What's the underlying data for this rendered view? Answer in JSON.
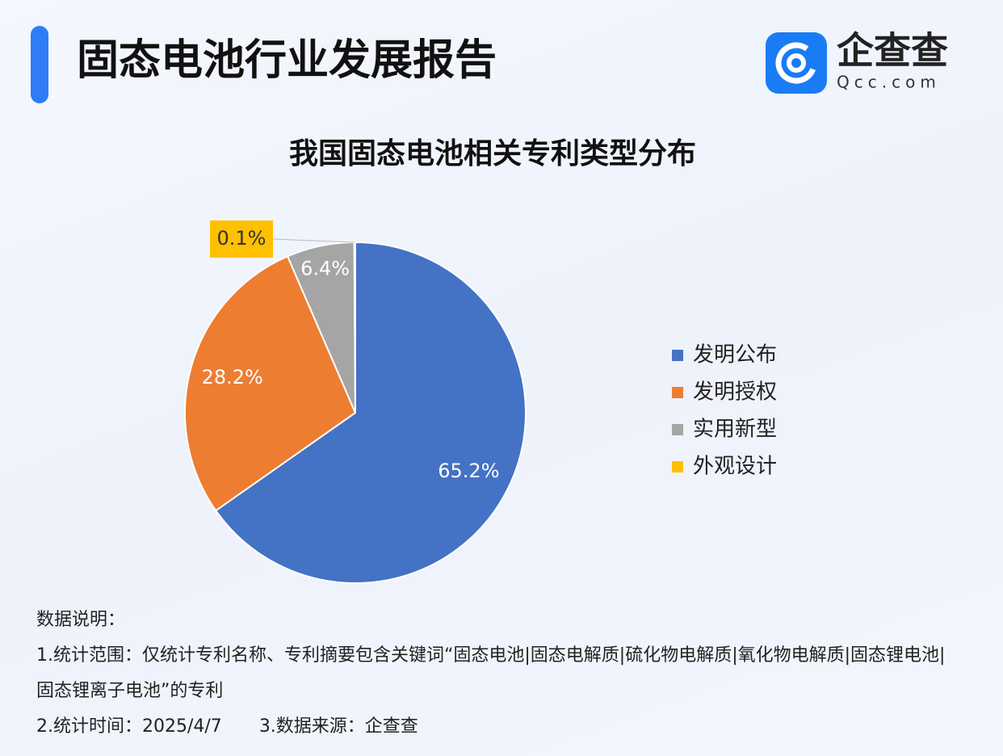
{
  "header": {
    "title": "固态电池行业发展报告",
    "logo_name": "企查查",
    "logo_domain": "Qcc.com"
  },
  "chart_data": {
    "type": "pie",
    "title": "我国固态电池相关专利类型分布",
    "categories": [
      "发明公布",
      "发明授权",
      "实用新型",
      "外观设计"
    ],
    "values": [
      65.2,
      28.2,
      6.4,
      0.1
    ],
    "value_labels": [
      "65.2%",
      "28.2%",
      "6.4%",
      "0.1%"
    ],
    "colors": [
      "#4472c4",
      "#ed7d31",
      "#a5a5a5",
      "#ffc000"
    ],
    "legend": "right"
  },
  "notes": {
    "heading": "数据说明：",
    "scope": "1.统计范围：仅统计专利名称、专利摘要包含关键词“固态电池|固态电解质|硫化物电解质|氧化物电解质|固态锂电池|固态锂离子电池”的专利",
    "time": "2.统计时间：2025/4/7",
    "source": "3.数据来源：企查查"
  }
}
